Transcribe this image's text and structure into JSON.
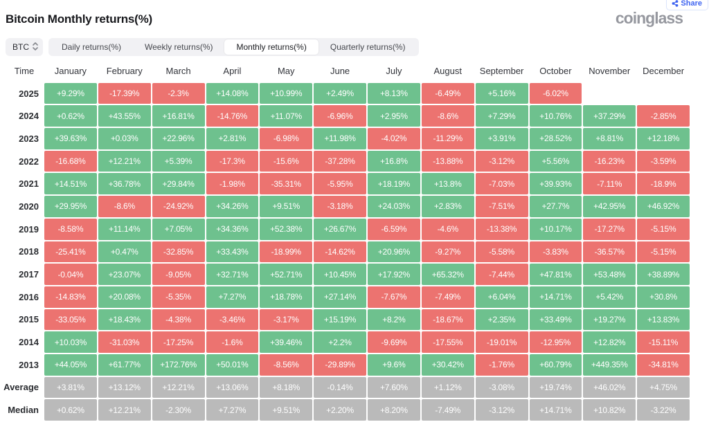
{
  "page": {
    "title": "Bitcoin Monthly returns(%)",
    "logo": "coinglass",
    "share_label": "Share"
  },
  "controls": {
    "symbol_selector": "BTC",
    "tabs": [
      {
        "label": "Daily returns(%)",
        "active": false
      },
      {
        "label": "Weekly returns(%)",
        "active": false
      },
      {
        "label": "Monthly returns(%)",
        "active": true
      },
      {
        "label": "Quarterly returns(%)",
        "active": false
      }
    ]
  },
  "colors": {
    "positive": "#6ec18e",
    "negative": "#ec7370",
    "stat": "#bababa",
    "share_blue": "#3e63f0"
  },
  "table": {
    "time_header": "Time",
    "months": [
      "January",
      "February",
      "March",
      "April",
      "May",
      "June",
      "July",
      "August",
      "September",
      "October",
      "November",
      "December"
    ],
    "rows": [
      {
        "label": "2025",
        "type": "year",
        "values": [
          "+9.29%",
          "-17.39%",
          "-2.3%",
          "+14.08%",
          "+10.99%",
          "+2.49%",
          "+8.13%",
          "-6.49%",
          "+5.16%",
          "-6.02%",
          "",
          ""
        ]
      },
      {
        "label": "2024",
        "type": "year",
        "values": [
          "+0.62%",
          "+43.55%",
          "+16.81%",
          "-14.76%",
          "+11.07%",
          "-6.96%",
          "+2.95%",
          "-8.6%",
          "+7.29%",
          "+10.76%",
          "+37.29%",
          "-2.85%"
        ]
      },
      {
        "label": "2023",
        "type": "year",
        "values": [
          "+39.63%",
          "+0.03%",
          "+22.96%",
          "+2.81%",
          "-6.98%",
          "+11.98%",
          "-4.02%",
          "-11.29%",
          "+3.91%",
          "+28.52%",
          "+8.81%",
          "+12.18%"
        ]
      },
      {
        "label": "2022",
        "type": "year",
        "values": [
          "-16.68%",
          "+12.21%",
          "+5.39%",
          "-17.3%",
          "-15.6%",
          "-37.28%",
          "+16.8%",
          "-13.88%",
          "-3.12%",
          "+5.56%",
          "-16.23%",
          "-3.59%"
        ]
      },
      {
        "label": "2021",
        "type": "year",
        "values": [
          "+14.51%",
          "+36.78%",
          "+29.84%",
          "-1.98%",
          "-35.31%",
          "-5.95%",
          "+18.19%",
          "+13.8%",
          "-7.03%",
          "+39.93%",
          "-7.11%",
          "-18.9%"
        ]
      },
      {
        "label": "2020",
        "type": "year",
        "values": [
          "+29.95%",
          "-8.6%",
          "-24.92%",
          "+34.26%",
          "+9.51%",
          "-3.18%",
          "+24.03%",
          "+2.83%",
          "-7.51%",
          "+27.7%",
          "+42.95%",
          "+46.92%"
        ]
      },
      {
        "label": "2019",
        "type": "year",
        "values": [
          "-8.58%",
          "+11.14%",
          "+7.05%",
          "+34.36%",
          "+52.38%",
          "+26.67%",
          "-6.59%",
          "-4.6%",
          "-13.38%",
          "+10.17%",
          "-17.27%",
          "-5.15%"
        ]
      },
      {
        "label": "2018",
        "type": "year",
        "values": [
          "-25.41%",
          "+0.47%",
          "-32.85%",
          "+33.43%",
          "-18.99%",
          "-14.62%",
          "+20.96%",
          "-9.27%",
          "-5.58%",
          "-3.83%",
          "-36.57%",
          "-5.15%"
        ]
      },
      {
        "label": "2017",
        "type": "year",
        "values": [
          "-0.04%",
          "+23.07%",
          "-9.05%",
          "+32.71%",
          "+52.71%",
          "+10.45%",
          "+17.92%",
          "+65.32%",
          "-7.44%",
          "+47.81%",
          "+53.48%",
          "+38.89%"
        ]
      },
      {
        "label": "2016",
        "type": "year",
        "values": [
          "-14.83%",
          "+20.08%",
          "-5.35%",
          "+7.27%",
          "+18.78%",
          "+27.14%",
          "-7.67%",
          "-7.49%",
          "+6.04%",
          "+14.71%",
          "+5.42%",
          "+30.8%"
        ]
      },
      {
        "label": "2015",
        "type": "year",
        "values": [
          "-33.05%",
          "+18.43%",
          "-4.38%",
          "-3.46%",
          "-3.17%",
          "+15.19%",
          "+8.2%",
          "-18.67%",
          "+2.35%",
          "+33.49%",
          "+19.27%",
          "+13.83%"
        ]
      },
      {
        "label": "2014",
        "type": "year",
        "values": [
          "+10.03%",
          "-31.03%",
          "-17.25%",
          "-1.6%",
          "+39.46%",
          "+2.2%",
          "-9.69%",
          "-17.55%",
          "-19.01%",
          "-12.95%",
          "+12.82%",
          "-15.11%"
        ]
      },
      {
        "label": "2013",
        "type": "year",
        "values": [
          "+44.05%",
          "+61.77%",
          "+172.76%",
          "+50.01%",
          "-8.56%",
          "-29.89%",
          "+9.6%",
          "+30.42%",
          "-1.76%",
          "+60.79%",
          "+449.35%",
          "-34.81%"
        ]
      },
      {
        "label": "Average",
        "type": "stat",
        "values": [
          "+3.81%",
          "+13.12%",
          "+12.21%",
          "+13.06%",
          "+8.18%",
          "-0.14%",
          "+7.60%",
          "+1.12%",
          "-3.08%",
          "+19.74%",
          "+46.02%",
          "+4.75%"
        ]
      },
      {
        "label": "Median",
        "type": "stat",
        "values": [
          "+0.62%",
          "+12.21%",
          "-2.30%",
          "+7.27%",
          "+9.51%",
          "+2.20%",
          "+8.20%",
          "-7.49%",
          "-3.12%",
          "+14.71%",
          "+10.82%",
          "-3.22%"
        ]
      }
    ]
  }
}
